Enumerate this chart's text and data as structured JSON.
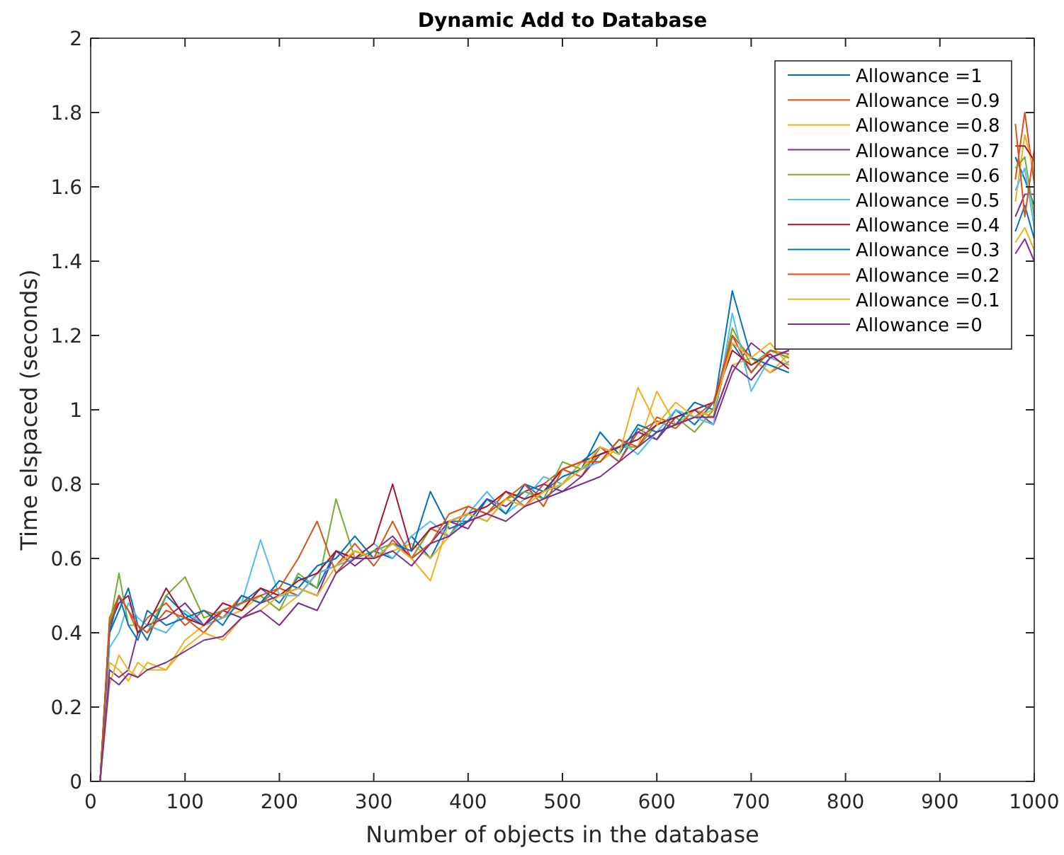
{
  "chart_data": {
    "type": "line",
    "title": "Dynamic Add to Database",
    "xlabel": "Number of objects in the database",
    "ylabel": "Time elspaced (seconds)",
    "x": [
      10,
      20,
      30,
      40,
      50,
      60,
      80,
      100,
      120,
      140,
      160,
      180,
      200,
      220,
      240,
      260,
      280,
      300,
      320,
      340,
      360,
      380,
      400,
      420,
      440,
      460,
      480,
      500,
      520,
      540,
      560,
      580,
      600,
      620,
      640,
      660,
      680,
      700,
      720,
      740,
      760,
      780,
      980,
      990,
      1000
    ],
    "xlim": [
      0,
      1000
    ],
    "xticks": [
      0,
      100,
      200,
      300,
      400,
      500,
      600,
      700,
      800,
      900,
      1000
    ],
    "ylim": [
      0,
      2
    ],
    "yticks": [
      0,
      0.2,
      0.4,
      0.6,
      0.8,
      1,
      1.2,
      1.4,
      1.6,
      1.8,
      2
    ],
    "grid": false,
    "legend": "top right",
    "marker": "none",
    "line_style": "solid",
    "series": [
      {
        "name": "Allowance =1",
        "color": "#0072bd",
        "values": [
          0,
          0.4,
          0.46,
          0.52,
          0.42,
          0.38,
          0.5,
          0.45,
          0.42,
          0.46,
          0.48,
          0.52,
          0.48,
          0.55,
          0.52,
          0.62,
          0.6,
          0.62,
          0.6,
          0.66,
          0.6,
          0.7,
          0.7,
          0.76,
          0.72,
          0.8,
          0.76,
          0.8,
          0.86,
          0.9,
          0.86,
          0.95,
          0.92,
          1.0,
          0.96,
          1.02,
          1.18,
          1.1,
          1.16,
          1.14,
          null,
          null,
          1.68,
          1.62,
          1.55
        ]
      },
      {
        "name": "Allowance =0.9",
        "color": "#d95319",
        "values": [
          0,
          0.44,
          0.5,
          0.46,
          0.4,
          0.44,
          0.48,
          0.42,
          0.46,
          0.44,
          0.5,
          0.48,
          0.52,
          0.5,
          0.56,
          0.58,
          0.64,
          0.58,
          0.65,
          0.6,
          0.68,
          0.66,
          0.74,
          0.72,
          0.78,
          0.74,
          0.8,
          0.84,
          0.82,
          0.9,
          0.86,
          0.94,
          0.97,
          0.95,
          1.0,
          0.98,
          1.2,
          1.14,
          1.1,
          1.13,
          null,
          null,
          1.62,
          1.8,
          1.61
        ]
      },
      {
        "name": "Allowance =0.8",
        "color": "#edb120",
        "values": [
          0,
          0.32,
          0.3,
          0.27,
          0.32,
          0.3,
          0.3,
          0.38,
          0.42,
          0.44,
          0.46,
          0.5,
          0.46,
          0.5,
          0.56,
          0.58,
          0.62,
          0.6,
          0.62,
          0.64,
          0.6,
          0.66,
          0.7,
          0.72,
          0.76,
          0.74,
          0.78,
          0.8,
          0.86,
          0.86,
          0.9,
          0.9,
          1.05,
          0.96,
          1.0,
          0.98,
          1.12,
          1.14,
          1.1,
          1.15,
          null,
          null,
          1.56,
          1.74,
          1.64
        ]
      },
      {
        "name": "Allowance =0.7",
        "color": "#7e2f8e",
        "values": [
          0,
          0.3,
          0.28,
          0.3,
          0.4,
          0.42,
          0.44,
          0.48,
          0.42,
          0.46,
          0.44,
          0.48,
          0.5,
          0.52,
          0.5,
          0.62,
          0.58,
          0.62,
          0.66,
          0.6,
          0.64,
          0.7,
          0.68,
          0.76,
          0.74,
          0.78,
          0.8,
          0.78,
          0.82,
          0.88,
          0.9,
          0.94,
          0.92,
          0.98,
          1.0,
          0.96,
          1.1,
          1.18,
          1.14,
          1.16,
          null,
          null,
          1.52,
          1.58,
          1.58
        ]
      },
      {
        "name": "Allowance =0.6",
        "color": "#77ac30",
        "values": [
          0,
          0.42,
          0.56,
          0.42,
          0.42,
          0.4,
          0.5,
          0.55,
          0.44,
          0.46,
          0.48,
          0.5,
          0.46,
          0.56,
          0.52,
          0.76,
          0.6,
          0.62,
          0.64,
          0.6,
          0.68,
          0.7,
          0.72,
          0.7,
          0.76,
          0.78,
          0.76,
          0.86,
          0.84,
          0.88,
          0.9,
          0.9,
          0.96,
          0.98,
          0.94,
          1.0,
          1.22,
          1.12,
          1.16,
          1.14,
          null,
          null,
          1.65,
          1.68,
          1.52
        ]
      },
      {
        "name": "Allowance =0.5",
        "color": "#4dbeee",
        "values": [
          0,
          0.36,
          0.4,
          0.48,
          0.44,
          0.42,
          0.4,
          0.46,
          0.42,
          0.44,
          0.48,
          0.65,
          0.5,
          0.5,
          0.56,
          0.58,
          0.6,
          0.64,
          0.6,
          0.66,
          0.7,
          0.66,
          0.72,
          0.78,
          0.72,
          0.76,
          0.82,
          0.8,
          0.84,
          0.86,
          0.92,
          0.88,
          0.94,
          1.0,
          0.98,
          0.96,
          1.26,
          1.05,
          1.14,
          1.12,
          null,
          null,
          1.59,
          1.65,
          1.49
        ]
      },
      {
        "name": "Allowance =0.4",
        "color": "#a2142f",
        "values": [
          0,
          0.42,
          0.48,
          0.5,
          0.4,
          0.42,
          0.52,
          0.44,
          0.42,
          0.48,
          0.46,
          0.52,
          0.5,
          0.54,
          0.56,
          0.62,
          0.6,
          0.64,
          0.8,
          0.62,
          0.68,
          0.7,
          0.72,
          0.74,
          0.78,
          0.76,
          0.78,
          0.84,
          0.86,
          0.88,
          0.9,
          0.92,
          0.96,
          0.98,
          1.0,
          1.02,
          1.16,
          1.12,
          1.15,
          1.11,
          null,
          null,
          1.71,
          1.71,
          1.67
        ]
      },
      {
        "name": "Allowance =0.3",
        "color": "#0072bd",
        "values": [
          0,
          0.4,
          0.5,
          0.42,
          0.38,
          0.46,
          0.42,
          0.44,
          0.46,
          0.42,
          0.5,
          0.48,
          0.54,
          0.52,
          0.58,
          0.6,
          0.66,
          0.6,
          0.64,
          0.62,
          0.78,
          0.68,
          0.7,
          0.76,
          0.72,
          0.8,
          0.78,
          0.82,
          0.84,
          0.94,
          0.88,
          0.96,
          0.94,
          0.96,
          1.02,
          1.0,
          1.32,
          1.14,
          1.12,
          1.1,
          null,
          null,
          1.48,
          1.55,
          1.46
        ]
      },
      {
        "name": "Allowance =0.2",
        "color": "#d95319",
        "values": [
          0,
          0.42,
          0.5,
          0.46,
          0.42,
          0.4,
          0.46,
          0.44,
          0.4,
          0.46,
          0.48,
          0.5,
          0.52,
          0.6,
          0.7,
          0.56,
          0.62,
          0.6,
          0.7,
          0.6,
          0.64,
          0.72,
          0.74,
          0.72,
          0.76,
          0.8,
          0.74,
          0.84,
          0.86,
          0.86,
          0.92,
          0.9,
          0.98,
          0.96,
          0.98,
          1.02,
          1.2,
          1.1,
          1.16,
          1.15,
          null,
          null,
          1.77,
          1.52,
          1.7
        ]
      },
      {
        "name": "Allowance =0.1",
        "color": "#edb120",
        "values": [
          0,
          0.26,
          0.34,
          0.3,
          0.28,
          0.32,
          0.3,
          0.36,
          0.4,
          0.38,
          0.44,
          0.46,
          0.5,
          0.52,
          0.5,
          0.58,
          0.62,
          0.6,
          0.64,
          0.6,
          0.54,
          0.7,
          0.72,
          0.7,
          0.76,
          0.74,
          0.78,
          0.8,
          0.84,
          0.9,
          0.88,
          1.06,
          0.96,
          1.02,
          0.98,
          1.0,
          1.18,
          1.14,
          1.18,
          1.12,
          null,
          null,
          1.45,
          1.49,
          1.43
        ]
      },
      {
        "name": "Allowance =0",
        "color": "#7e2f8e",
        "values": [
          0,
          0.28,
          0.26,
          0.29,
          0.28,
          0.3,
          0.32,
          0.35,
          0.38,
          0.39,
          0.44,
          0.46,
          0.42,
          0.48,
          0.46,
          0.56,
          0.6,
          0.6,
          0.62,
          0.58,
          0.64,
          0.66,
          0.7,
          0.72,
          0.7,
          0.74,
          0.76,
          0.78,
          0.8,
          0.82,
          0.86,
          0.9,
          0.94,
          0.96,
          0.98,
          0.98,
          1.12,
          1.08,
          1.14,
          1.16,
          null,
          null,
          1.42,
          1.46,
          1.4
        ]
      }
    ]
  }
}
